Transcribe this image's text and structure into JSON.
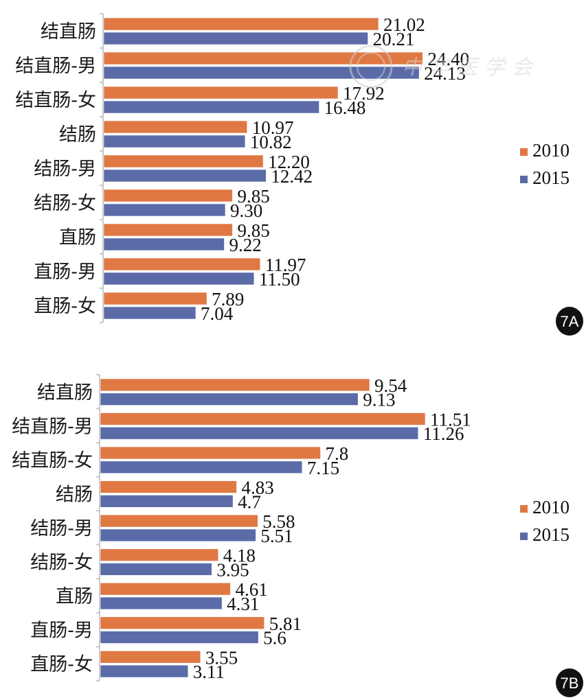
{
  "chart_data": [
    {
      "type": "bar",
      "orientation": "horizontal",
      "panel_label": "7A",
      "title": "",
      "xlabel": "",
      "ylabel": "",
      "categories": [
        "结直肠",
        "结直肠-男",
        "结直肠-女",
        "结肠",
        "结肠-男",
        "结肠-女",
        "直肠",
        "直肠-男",
        "直肠-女"
      ],
      "series": [
        {
          "name": "2010",
          "color": "#E07844",
          "values": [
            21.02,
            24.4,
            17.92,
            10.97,
            12.2,
            9.85,
            9.85,
            11.97,
            7.89
          ]
        },
        {
          "name": "2015",
          "color": "#5B6BA8",
          "values": [
            20.21,
            24.13,
            16.48,
            10.82,
            12.42,
            9.3,
            9.22,
            11.5,
            7.04
          ]
        }
      ],
      "value_labels": {
        "2010": [
          "21.02",
          "24.40",
          "17.92",
          "10.97",
          "12.20",
          "9.85",
          "9.85",
          "11.97",
          "7.89"
        ],
        "2015": [
          "20.21",
          "24.13",
          "16.48",
          "10.82",
          "12.42",
          "9.30",
          "9.22",
          "11.50",
          "7.04"
        ]
      },
      "xlim": [
        0,
        24.4
      ],
      "grid": false,
      "legend": "right",
      "x_axis_visible": false
    },
    {
      "type": "bar",
      "orientation": "horizontal",
      "panel_label": "7B",
      "title": "",
      "xlabel": "",
      "ylabel": "",
      "categories": [
        "结直肠",
        "结直肠-男",
        "结直肠-女",
        "结肠",
        "结肠-男",
        "结肠-女",
        "直肠",
        "直肠-男",
        "直肠-女"
      ],
      "series": [
        {
          "name": "2010",
          "color": "#E07844",
          "values": [
            9.54,
            11.51,
            7.8,
            4.83,
            5.58,
            4.18,
            4.61,
            5.81,
            3.55
          ]
        },
        {
          "name": "2015",
          "color": "#5B6BA8",
          "values": [
            9.13,
            11.26,
            7.15,
            4.7,
            5.51,
            3.95,
            4.31,
            5.6,
            3.11
          ]
        }
      ],
      "value_labels": {
        "2010": [
          "9.54",
          "11.51",
          "7.8",
          "4.83",
          "5.58",
          "4.18",
          "4.61",
          "5.81",
          "3.55"
        ],
        "2015": [
          "9.13",
          "11.26",
          "7.15",
          "4.7",
          "5.51",
          "3.95",
          "4.31",
          "5.6",
          "3.11"
        ]
      },
      "xlim": [
        0,
        11.51
      ],
      "grid": false,
      "legend": "right",
      "x_axis_visible": false
    }
  ],
  "watermark": "中华医学会"
}
